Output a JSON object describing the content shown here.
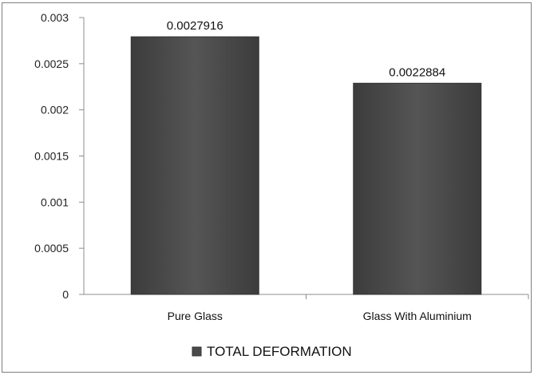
{
  "chart_data": {
    "type": "bar",
    "categories": [
      "Pure Glass",
      "Glass With Aluminium"
    ],
    "series": [
      {
        "name": "TOTAL DEFORMATION",
        "values": [
          0.0027916,
          0.0022884
        ]
      }
    ],
    "data_labels": [
      "0.0027916",
      "0.0022884"
    ],
    "y_ticks": [
      "0",
      "0.0005",
      "0.001",
      "0.0015",
      "0.002",
      "0.0025",
      "0.003"
    ],
    "ylim": [
      0,
      0.003
    ],
    "title": "",
    "xlabel": "",
    "ylabel": "",
    "grid": false,
    "legend_position": "bottom",
    "colors": {
      "bar": "#4a4a4a",
      "bar_edge": "#333333",
      "axis": "#8c8c8c",
      "frame": "#7f7f7f"
    }
  }
}
